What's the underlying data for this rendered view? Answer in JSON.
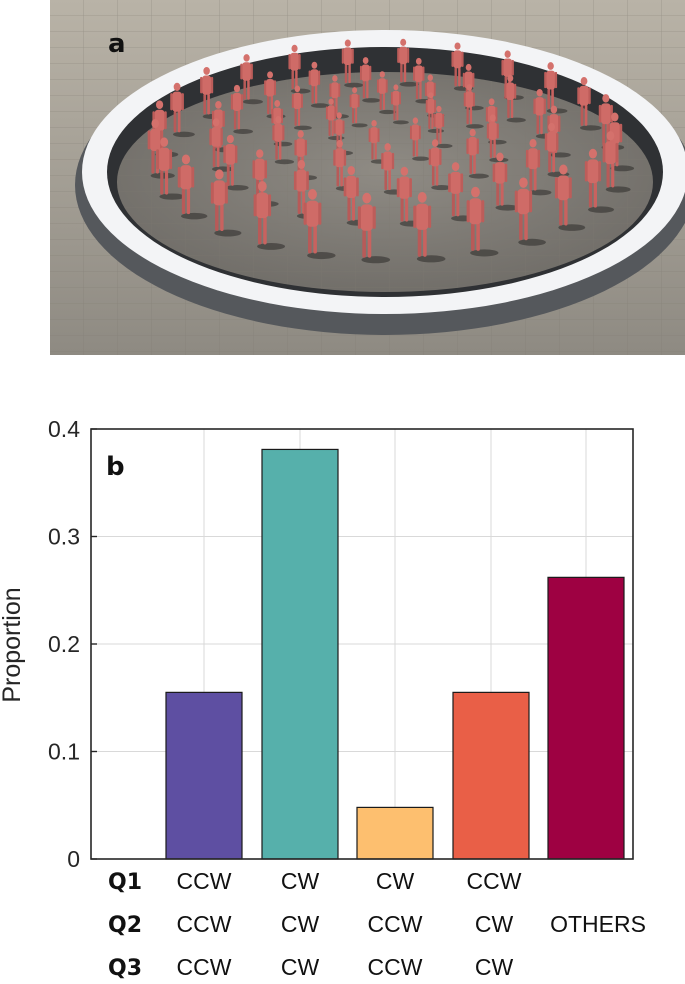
{
  "panel_a": {
    "label": "a"
  },
  "chart_data": {
    "type": "bar",
    "panel_label": "b",
    "ylabel": "Proportion",
    "ylim": [
      0,
      0.4
    ],
    "yticks": [
      0,
      0.1,
      0.2,
      0.3,
      0.4
    ],
    "ytick_labels": [
      "0",
      "0.1",
      "0.2",
      "0.3",
      "0.4"
    ],
    "grid": true,
    "row_labels": [
      "Q1",
      "Q2",
      "Q3"
    ],
    "categories": [
      {
        "rows": [
          "CCW",
          "CCW",
          "CCW"
        ],
        "value": 0.155,
        "color": "#5E4FA2"
      },
      {
        "rows": [
          "CW",
          "CW",
          "CW"
        ],
        "value": 0.381,
        "color": "#56B0AB"
      },
      {
        "rows": [
          "CW",
          "CCW",
          "CCW"
        ],
        "value": 0.048,
        "color": "#FDBF6F"
      },
      {
        "rows": [
          "CCW",
          "CW",
          "CW"
        ],
        "value": 0.155,
        "color": "#E95F47"
      },
      {
        "rows": [
          "",
          "OTHERS",
          ""
        ],
        "value": 0.262,
        "color": "#9E0142"
      }
    ]
  }
}
